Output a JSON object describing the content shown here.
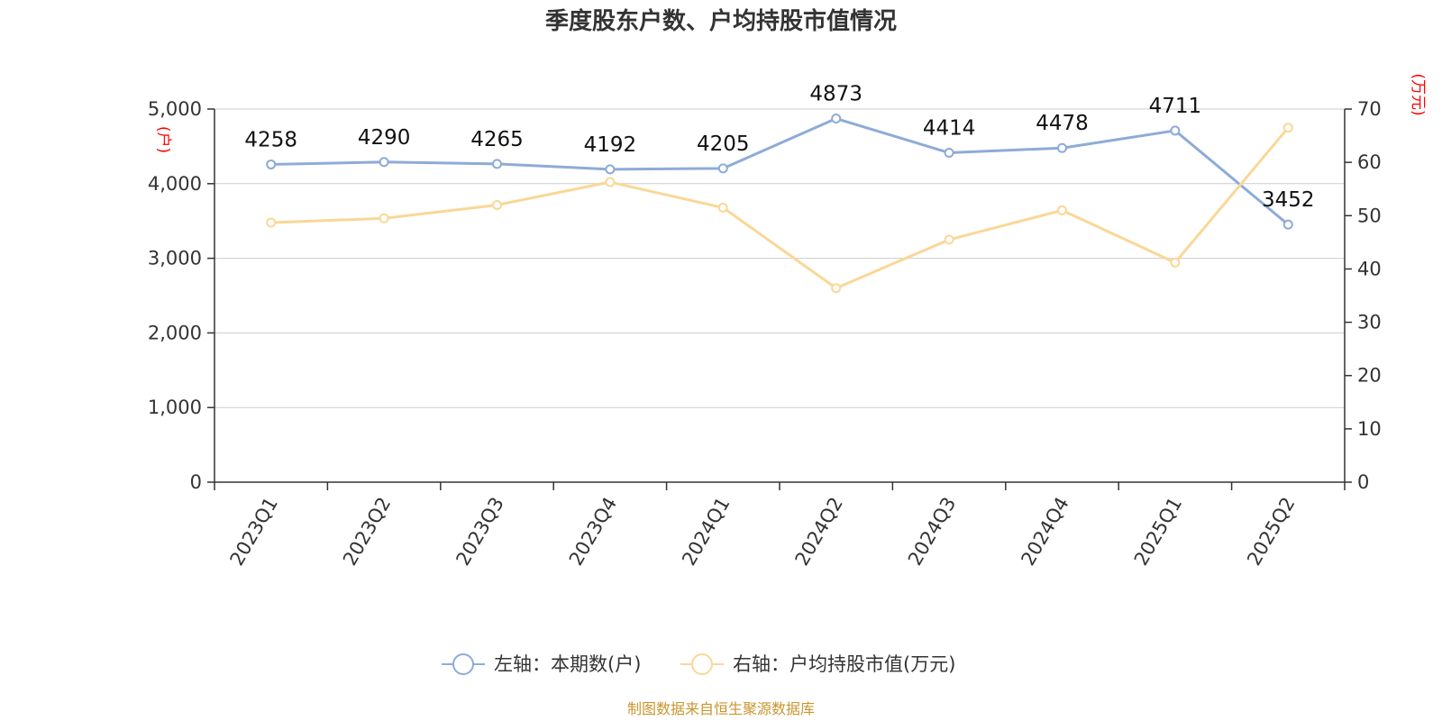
{
  "chart_data": {
    "type": "line",
    "title": "季度股东户数、户均持股市值情况",
    "categories": [
      "2023Q1",
      "2023Q2",
      "2023Q3",
      "2023Q4",
      "2024Q1",
      "2024Q2",
      "2024Q3",
      "2024Q4",
      "2025Q1",
      "2025Q2"
    ],
    "left_axis": {
      "unit": "(户)",
      "ylim": [
        0,
        5000
      ],
      "ticks": [
        0,
        1000,
        2000,
        3000,
        4000,
        5000
      ],
      "tick_labels": [
        "0",
        "1,000",
        "2,000",
        "3,000",
        "4,000",
        "5,000"
      ]
    },
    "right_axis": {
      "unit": "(万元)",
      "ylim": [
        0,
        70
      ],
      "ticks": [
        0,
        10,
        20,
        30,
        40,
        50,
        60,
        70
      ],
      "tick_labels": [
        "0",
        "10",
        "20",
        "30",
        "40",
        "50",
        "60",
        "70"
      ]
    },
    "series": [
      {
        "name": "左轴：本期数(户)",
        "axis": "left",
        "color": "#8eabd8",
        "values": [
          4258,
          4290,
          4265,
          4192,
          4205,
          4873,
          4414,
          4478,
          4711,
          3452
        ],
        "data_labels": [
          "4258",
          "4290",
          "4265",
          "4192",
          "4205",
          "4873",
          "4414",
          "4478",
          "4711",
          "3452"
        ]
      },
      {
        "name": "右轴：户均持股市值(万元)",
        "axis": "right",
        "color": "#fad797",
        "values": [
          48.7,
          49.5,
          52.0,
          56.3,
          51.5,
          36.4,
          45.5,
          51.0,
          41.2,
          66.5
        ]
      }
    ],
    "grid": true,
    "legend_position": "bottom-center"
  },
  "source_text": "制图数据来自恒生聚源数据库"
}
